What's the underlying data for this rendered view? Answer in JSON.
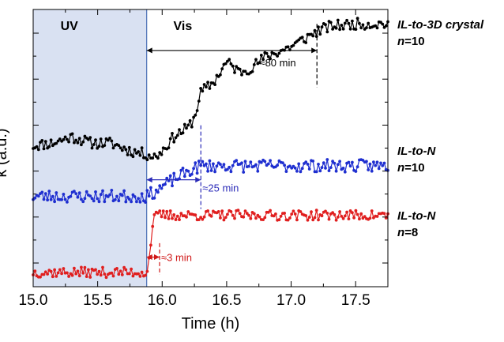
{
  "chart_data": {
    "type": "line",
    "xlabel": "Time (h)",
    "ylabel": "κ (a.u.)",
    "xlim": [
      15.0,
      17.75
    ],
    "ylim": [
      0,
      1
    ],
    "x_ticks": [
      "15.0",
      "15.5",
      "16.0",
      "16.5",
      "17.0",
      "17.5"
    ],
    "x_tick_values": [
      15.0,
      15.5,
      16.0,
      16.5,
      17.0,
      17.5
    ],
    "shaded_region": {
      "label": "UV",
      "x_start": 15.0,
      "x_end": 15.88,
      "color": "#d9e1f2"
    },
    "region_labels": [
      {
        "text": "UV",
        "x": 15.28
      },
      {
        "text": "Vis",
        "x": 16.16
      }
    ],
    "series": [
      {
        "name": "IL-to-3D crystal",
        "n_label": "n",
        "n_value": "=10",
        "color": "#000000",
        "x_start": 15.0,
        "x_end": 17.75,
        "n_points": 200,
        "seed": 11,
        "profile": [
          [
            15.0,
            0.51
          ],
          [
            15.15,
            0.52
          ],
          [
            15.3,
            0.545
          ],
          [
            15.45,
            0.52
          ],
          [
            15.6,
            0.52
          ],
          [
            15.75,
            0.49
          ],
          [
            15.88,
            0.475
          ],
          [
            15.95,
            0.465
          ],
          [
            16.0,
            0.49
          ],
          [
            16.1,
            0.55
          ],
          [
            16.2,
            0.58
          ],
          [
            16.25,
            0.62
          ],
          [
            16.3,
            0.72
          ],
          [
            16.4,
            0.76
          ],
          [
            16.5,
            0.84
          ],
          [
            16.55,
            0.82
          ],
          [
            16.6,
            0.8
          ],
          [
            16.7,
            0.82
          ],
          [
            16.8,
            0.86
          ],
          [
            16.9,
            0.88
          ],
          [
            17.0,
            0.9
          ],
          [
            17.1,
            0.93
          ],
          [
            17.2,
            0.96
          ],
          [
            17.3,
            0.98
          ],
          [
            17.5,
            0.99
          ],
          [
            17.75,
            0.99
          ]
        ],
        "noise": 0.022
      },
      {
        "name": "IL-to-N",
        "n_label": "n",
        "n_value": "=10",
        "color": "#1f2fd0",
        "x_start": 15.0,
        "x_end": 17.75,
        "n_points": 200,
        "seed": 23,
        "profile": [
          [
            15.0,
            0.31
          ],
          [
            15.5,
            0.31
          ],
          [
            15.88,
            0.31
          ],
          [
            15.95,
            0.33
          ],
          [
            16.1,
            0.38
          ],
          [
            16.25,
            0.42
          ],
          [
            16.3,
            0.43
          ],
          [
            16.5,
            0.43
          ],
          [
            17.0,
            0.43
          ],
          [
            17.75,
            0.43
          ]
        ],
        "noise": 0.025
      },
      {
        "name": "IL-to-N",
        "n_label": "n",
        "n_value": "=8",
        "color": "#e01f1f",
        "x_start": 15.0,
        "x_end": 17.75,
        "n_points": 200,
        "seed": 37,
        "profile": [
          [
            15.0,
            0.01
          ],
          [
            15.88,
            0.01
          ],
          [
            15.89,
            0.02
          ],
          [
            15.93,
            0.22
          ],
          [
            15.97,
            0.235
          ],
          [
            16.2,
            0.235
          ],
          [
            17.0,
            0.235
          ],
          [
            17.75,
            0.235
          ]
        ],
        "noise": 0.02
      }
    ],
    "annotations": [
      {
        "text": "≈80 min",
        "color": "#000000",
        "x_start": 15.88,
        "x_end": 17.2,
        "y_arrow": 0.885,
        "y_dash_top": 0.99,
        "y_dash_bottom": 0.74
      },
      {
        "text": "≈25 min",
        "color": "#2a2ab8",
        "x_start": 15.88,
        "x_end": 16.3,
        "y_arrow": 0.375,
        "y_dash_top": 0.59,
        "y_dash_bottom": 0.26
      },
      {
        "text": "≈3 min",
        "color": "#d01818",
        "x_start": 15.88,
        "x_end": 15.98,
        "y_arrow": 0.07,
        "y_dash_top": 0.125,
        "y_dash_bottom": 0.0
      }
    ]
  }
}
